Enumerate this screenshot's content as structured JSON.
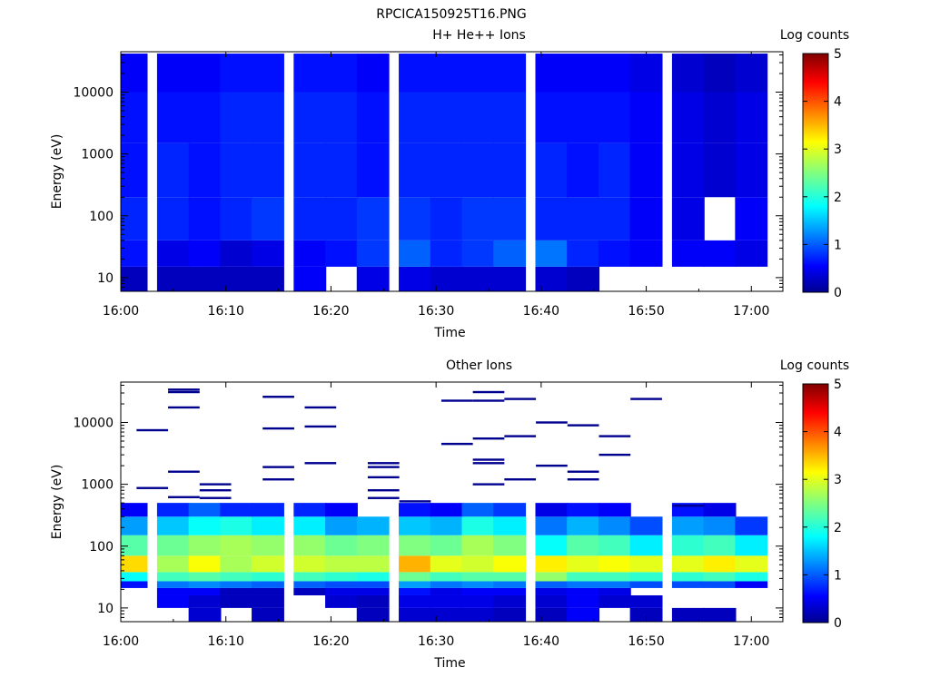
{
  "figure": {
    "title": "RPCICA150925T16.PNG"
  },
  "colorbar": {
    "label": "Log counts",
    "range": [
      0,
      5
    ],
    "ticks": [
      "0",
      "1",
      "2",
      "3",
      "4",
      "5"
    ]
  },
  "chart_data": [
    {
      "type": "heatmap",
      "title": "H+ He++ Ions",
      "xlabel": "Time",
      "ylabel": "Energy (eV)",
      "xlim": [
        "16:00",
        "17:03"
      ],
      "ylim": [
        6,
        45000
      ],
      "yscale": "log",
      "x_ticks": [
        "16:00",
        "16:10",
        "16:20",
        "16:30",
        "16:40",
        "16:50",
        "17:00"
      ],
      "y_ticks": [
        "10",
        "100",
        "1000",
        "10000"
      ],
      "time_bins": [
        "16:01",
        "16:05",
        "16:08",
        "16:11",
        "16:14",
        "16:18",
        "16:21",
        "16:24",
        "16:28",
        "16:31",
        "16:34",
        "16:37",
        "16:41",
        "16:44",
        "16:47",
        "16:50",
        "16:54",
        "16:57",
        "17:00"
      ],
      "energy_bands_eV": [
        [
          6,
          15
        ],
        [
          15,
          40
        ],
        [
          40,
          200
        ],
        [
          200,
          1500
        ],
        [
          1500,
          10000
        ],
        [
          10000,
          42000
        ]
      ],
      "log_counts": [
        [
          0.3,
          0.3,
          0.3,
          0.3,
          0.3,
          0.6,
          null,
          0.5,
          0.5,
          0.4,
          0.4,
          0.4,
          0.4,
          0.3,
          null,
          null,
          null,
          null,
          null
        ],
        [
          0.7,
          0.5,
          0.6,
          0.4,
          0.5,
          0.6,
          0.7,
          0.9,
          1.1,
          0.8,
          0.9,
          1.1,
          1.2,
          0.8,
          0.7,
          0.6,
          0.6,
          0.6,
          0.5
        ],
        [
          0.8,
          0.8,
          0.7,
          0.8,
          0.9,
          0.8,
          0.8,
          0.9,
          0.9,
          0.8,
          0.9,
          0.9,
          0.8,
          0.8,
          0.8,
          0.6,
          0.5,
          null,
          0.6
        ],
        [
          0.7,
          0.8,
          0.7,
          0.8,
          0.8,
          0.8,
          0.8,
          0.7,
          0.8,
          0.8,
          0.8,
          0.8,
          0.8,
          0.7,
          0.8,
          0.6,
          0.5,
          0.4,
          0.5
        ],
        [
          0.7,
          0.7,
          0.7,
          0.8,
          0.8,
          0.8,
          0.8,
          0.7,
          0.8,
          0.8,
          0.8,
          0.8,
          0.7,
          0.7,
          0.7,
          0.6,
          0.5,
          0.4,
          0.5
        ],
        [
          0.6,
          0.6,
          0.6,
          0.7,
          0.7,
          0.7,
          0.7,
          0.6,
          0.7,
          0.7,
          0.7,
          0.7,
          0.6,
          0.6,
          0.6,
          0.5,
          0.4,
          0.3,
          0.4
        ]
      ]
    },
    {
      "type": "heatmap",
      "title": "Other Ions",
      "xlabel": "Time",
      "ylabel": "Energy (eV)",
      "xlim": [
        "16:00",
        "17:03"
      ],
      "ylim": [
        6,
        45000
      ],
      "yscale": "log",
      "x_ticks": [
        "16:00",
        "16:10",
        "16:20",
        "16:30",
        "16:40",
        "16:50",
        "17:00"
      ],
      "y_ticks": [
        "10",
        "100",
        "1000",
        "10000"
      ],
      "time_bins": [
        "16:01",
        "16:05",
        "16:08",
        "16:11",
        "16:14",
        "16:18",
        "16:21",
        "16:24",
        "16:28",
        "16:31",
        "16:34",
        "16:37",
        "16:41",
        "16:44",
        "16:47",
        "16:50",
        "16:54",
        "16:57",
        "17:00"
      ],
      "energy_bands_eV": [
        [
          6,
          10
        ],
        [
          10,
          16
        ],
        [
          16,
          21
        ],
        [
          21,
          27
        ],
        [
          27,
          38
        ],
        [
          38,
          70
        ],
        [
          70,
          150
        ],
        [
          150,
          300
        ],
        [
          300,
          500
        ]
      ],
      "log_counts": [
        [
          null,
          null,
          0.4,
          null,
          0.3,
          null,
          null,
          0.3,
          0.4,
          0.4,
          0.4,
          0.3,
          0.3,
          0.6,
          null,
          0.3,
          0.3,
          0.3,
          null
        ],
        [
          null,
          0.6,
          0.4,
          0.3,
          0.3,
          null,
          0.4,
          0.3,
          0.5,
          0.5,
          0.5,
          0.4,
          0.4,
          0.6,
          0.4,
          0.4,
          null,
          null,
          null
        ],
        [
          null,
          0.6,
          0.6,
          0.3,
          0.3,
          0.3,
          0.5,
          0.5,
          0.7,
          0.5,
          0.6,
          0.6,
          0.5,
          0.6,
          0.5,
          null,
          null,
          null,
          null
        ],
        [
          0.7,
          1.2,
          1.3,
          1.2,
          1.1,
          1.1,
          1.0,
          1.0,
          1.4,
          1.2,
          1.3,
          1.2,
          1.1,
          1.2,
          1.2,
          1.0,
          1.0,
          1.0,
          0.6
        ],
        [
          1.9,
          2.2,
          2.3,
          2.2,
          2.1,
          2.2,
          2.1,
          2.0,
          2.4,
          2.2,
          2.3,
          2.3,
          2.6,
          2.2,
          2.2,
          2.1,
          2.1,
          2.2,
          2.0
        ],
        [
          3.3,
          2.7,
          3.1,
          2.7,
          2.9,
          2.9,
          2.8,
          2.8,
          3.5,
          3.0,
          2.9,
          3.1,
          3.2,
          3.0,
          3.1,
          3.0,
          3.0,
          3.2,
          3.0
        ],
        [
          2.3,
          2.4,
          2.6,
          2.7,
          2.6,
          2.6,
          2.4,
          2.5,
          2.5,
          2.4,
          2.7,
          2.5,
          1.9,
          2.3,
          2.2,
          1.8,
          2.1,
          2.2,
          1.8
        ],
        [
          1.4,
          1.6,
          1.9,
          2.0,
          1.8,
          1.8,
          1.4,
          1.5,
          1.6,
          1.5,
          2.0,
          1.8,
          1.2,
          1.5,
          1.3,
          1.0,
          1.4,
          1.3,
          0.9
        ],
        [
          0.6,
          0.8,
          1.1,
          0.8,
          0.8,
          0.8,
          0.6,
          null,
          0.7,
          0.6,
          1.1,
          0.9,
          0.5,
          0.7,
          0.6,
          null,
          0.7,
          0.5,
          null
        ]
      ],
      "sparse_high_energy_lines": [
        {
          "time": "16:03",
          "energy_eV": [
            7500,
            870
          ]
        },
        {
          "time": "16:06",
          "energy_eV": [
            34000,
            31000,
            17500,
            1600,
            620
          ]
        },
        {
          "time": "16:09",
          "energy_eV": [
            1000,
            800,
            600
          ]
        },
        {
          "time": "16:15",
          "energy_eV": [
            26000,
            8000,
            1900,
            1200
          ]
        },
        {
          "time": "16:19",
          "energy_eV": [
            17500,
            8600,
            2200
          ]
        },
        {
          "time": "16:25",
          "energy_eV": [
            2200,
            1900,
            1300,
            800,
            600
          ]
        },
        {
          "time": "16:28",
          "energy_eV": [
            530
          ]
        },
        {
          "time": "16:32",
          "energy_eV": [
            22500,
            4500
          ]
        },
        {
          "time": "16:35",
          "energy_eV": [
            31000,
            22500,
            5500,
            2500,
            2200,
            1000
          ]
        },
        {
          "time": "16:38",
          "energy_eV": [
            24000,
            6000,
            1200
          ]
        },
        {
          "time": "16:41",
          "energy_eV": [
            10000,
            2000
          ]
        },
        {
          "time": "16:44",
          "energy_eV": [
            9000,
            1600,
            1200
          ]
        },
        {
          "time": "16:47",
          "energy_eV": [
            6000,
            3000
          ]
        },
        {
          "time": "16:50",
          "energy_eV": [
            24000
          ]
        },
        {
          "time": "16:54",
          "energy_eV": [
            450
          ]
        }
      ]
    }
  ]
}
